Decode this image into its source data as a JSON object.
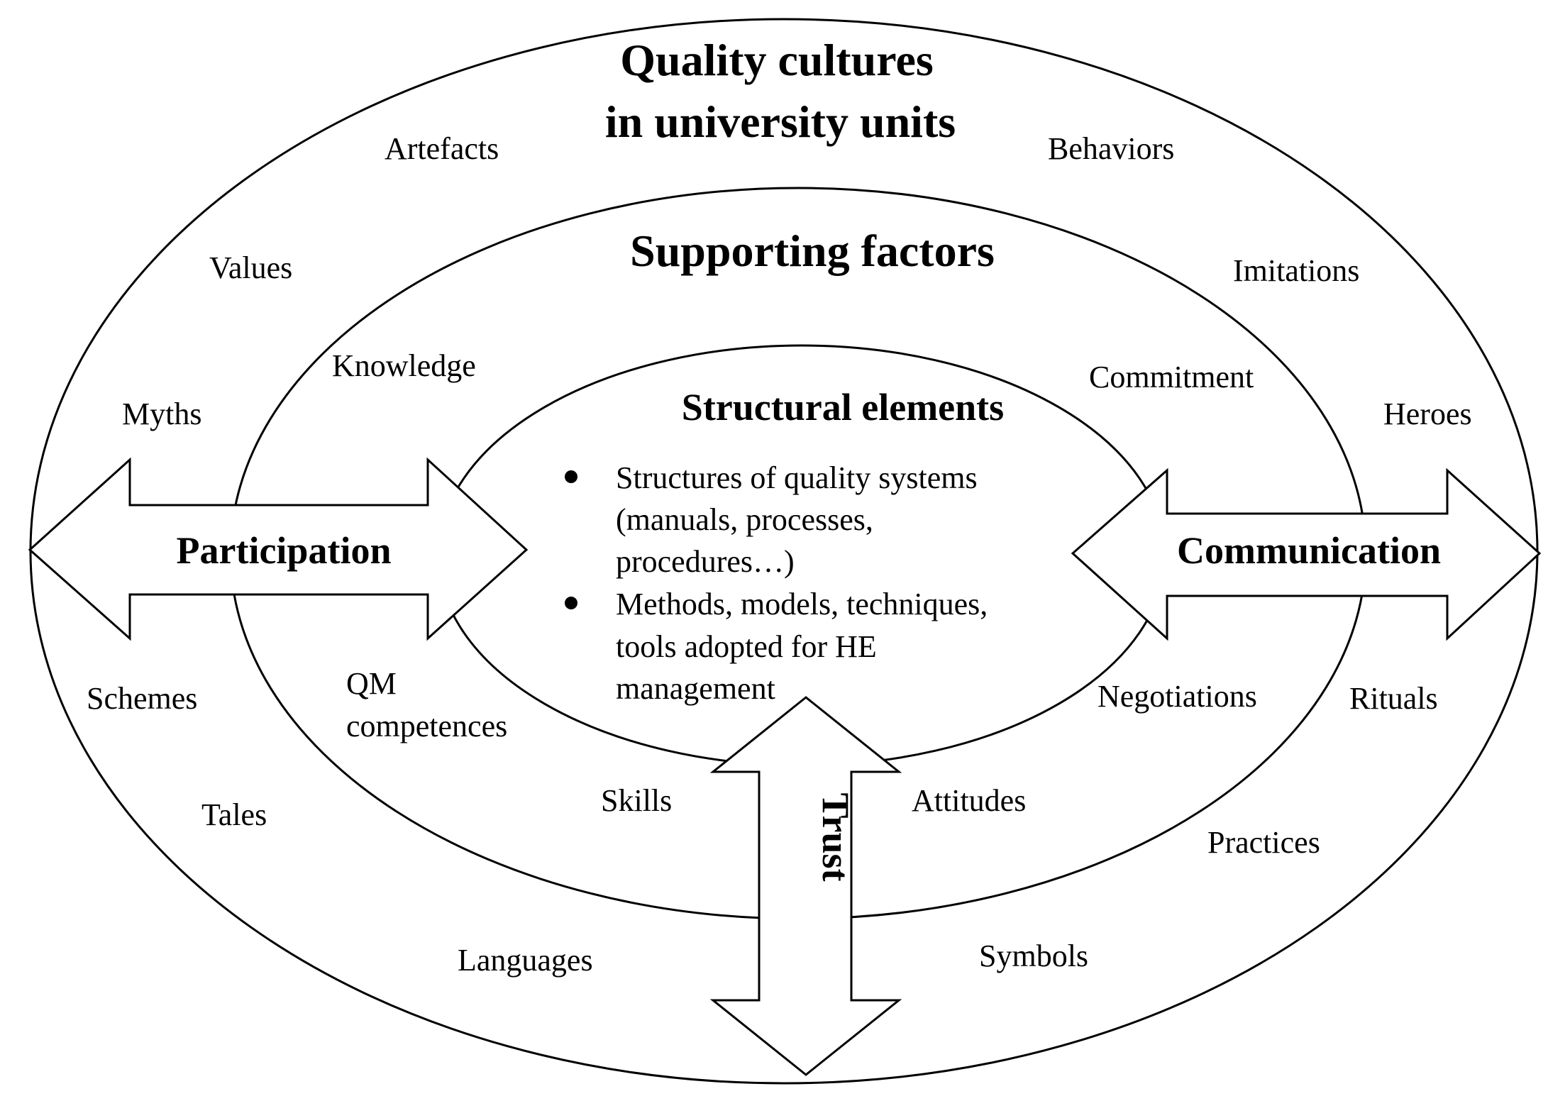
{
  "diagram": {
    "outer": {
      "title_line1": "Quality cultures",
      "title_line2": "in university units",
      "words": {
        "artefacts": "Artefacts",
        "behaviors": "Behaviors",
        "values": "Values",
        "imitations": "Imitations",
        "myths": "Myths",
        "heroes": "Heroes",
        "schemes": "Schemes",
        "rituals": "Rituals",
        "tales": "Tales",
        "practices": "Practices",
        "languages": "Languages",
        "symbols": "Symbols"
      }
    },
    "middle": {
      "title": "Supporting factors",
      "words": {
        "knowledge": "Knowledge",
        "commitment": "Commitment",
        "qm_line1": "QM",
        "qm_line2": "competences",
        "negotiations": "Negotiations",
        "skills": "Skills",
        "attitudes": "Attitudes"
      }
    },
    "inner": {
      "title": "Structural elements",
      "bullets": [
        {
          "lines": [
            "Structures of quality systems",
            "(manuals, processes,",
            "procedures…)"
          ]
        },
        {
          "lines": [
            "Methods, models, techniques,",
            "tools adopted for HE",
            "management"
          ]
        }
      ]
    },
    "arrows": {
      "participation": "Participation",
      "communication": "Communication",
      "trust": "Trust"
    }
  }
}
